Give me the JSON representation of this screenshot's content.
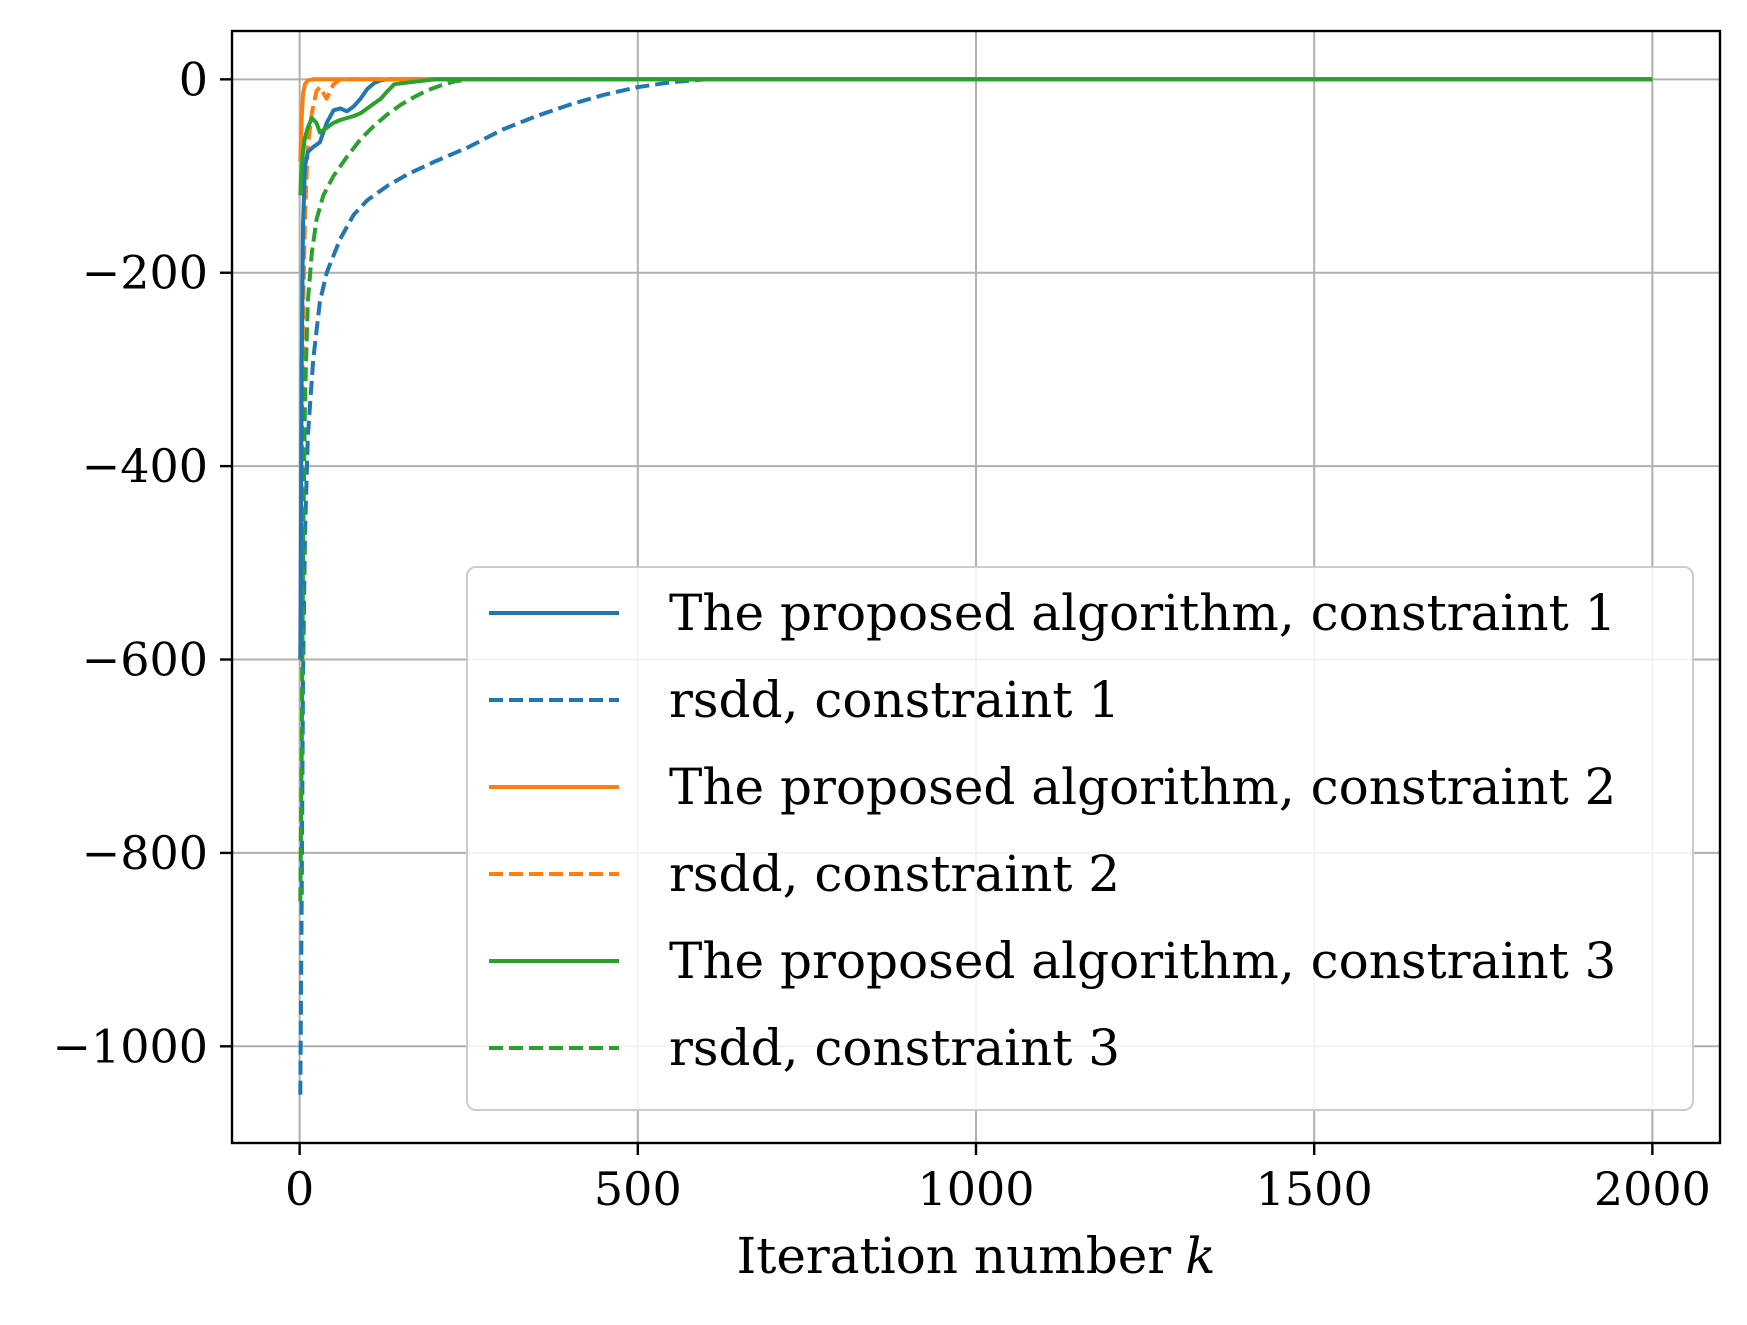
{
  "chart_data": {
    "type": "line",
    "title": "",
    "xlabel": "Iteration number",
    "xlabel_var": "k",
    "ylabel": "",
    "xlim": [
      -100,
      2100
    ],
    "ylim": [
      -1100,
      50
    ],
    "xticks": [
      0,
      500,
      1000,
      1500,
      2000
    ],
    "xtick_labels": [
      "0",
      "500",
      "1000",
      "1500",
      "2000"
    ],
    "yticks": [
      0,
      -200,
      -400,
      -600,
      -800,
      -1000
    ],
    "ytick_labels": [
      "0",
      "−200",
      "−400",
      "−600",
      "−800",
      "−1000"
    ],
    "grid": true,
    "legend_position": "lower-right",
    "series": [
      {
        "name": "The proposed algorithm, constraint 1",
        "color": "#1f77b4",
        "dash": "solid",
        "x": [
          1,
          3,
          5,
          8,
          12,
          20,
          30,
          40,
          50,
          60,
          70,
          80,
          90,
          100,
          110,
          120,
          130,
          150,
          200,
          300,
          500,
          1000,
          1500,
          2000
        ],
        "y": [
          -600,
          -300,
          -150,
          -90,
          -75,
          -70,
          -65,
          -45,
          -32,
          -30,
          -33,
          -28,
          -20,
          -10,
          -4,
          -1,
          0,
          0,
          0,
          0,
          0,
          0,
          0,
          0
        ]
      },
      {
        "name": "rsdd, constraint 1",
        "color": "#1f77b4",
        "dash": "dashed",
        "x": [
          1,
          3,
          5,
          8,
          12,
          20,
          30,
          40,
          60,
          80,
          100,
          130,
          160,
          200,
          250,
          300,
          350,
          400,
          450,
          500,
          550,
          600,
          700,
          1000,
          1500,
          2000
        ],
        "y": [
          -1050,
          -850,
          -620,
          -470,
          -370,
          -290,
          -230,
          -200,
          -165,
          -140,
          -125,
          -110,
          -98,
          -85,
          -70,
          -52,
          -38,
          -26,
          -16,
          -8,
          -3,
          0,
          0,
          0,
          0,
          0
        ]
      },
      {
        "name": "The proposed algorithm, constraint 2",
        "color": "#ff7f0e",
        "dash": "solid",
        "x": [
          1,
          3,
          5,
          8,
          12,
          20,
          30,
          40,
          60,
          100,
          500,
          1000,
          1500,
          2000
        ],
        "y": [
          -85,
          -40,
          -15,
          -5,
          -1,
          0,
          0,
          0,
          0,
          0,
          0,
          0,
          0,
          0
        ]
      },
      {
        "name": "rsdd, constraint 2",
        "color": "#ff7f0e",
        "dash": "dashed",
        "x": [
          1,
          3,
          5,
          8,
          12,
          18,
          25,
          30,
          40,
          50,
          60,
          100,
          500,
          1000,
          1500,
          2000
        ],
        "y": [
          -600,
          -420,
          -250,
          -140,
          -70,
          -35,
          -12,
          -8,
          -20,
          -5,
          0,
          0,
          0,
          0,
          0,
          0
        ]
      },
      {
        "name": "The proposed algorithm, constraint 3",
        "color": "#2ca02c",
        "dash": "solid",
        "x": [
          1,
          3,
          5,
          8,
          12,
          18,
          25,
          30,
          40,
          50,
          60,
          70,
          80,
          90,
          100,
          110,
          120,
          130,
          140,
          200,
          500,
          1000,
          1500,
          2000
        ],
        "y": [
          -120,
          -90,
          -75,
          -60,
          -50,
          -40,
          -45,
          -55,
          -50,
          -45,
          -42,
          -40,
          -38,
          -35,
          -30,
          -25,
          -20,
          -12,
          -5,
          0,
          0,
          0,
          0,
          0
        ]
      },
      {
        "name": "rsdd, constraint 3",
        "color": "#2ca02c",
        "dash": "dashed",
        "x": [
          1,
          3,
          5,
          8,
          12,
          18,
          25,
          35,
          50,
          70,
          90,
          110,
          130,
          150,
          170,
          190,
          210,
          230,
          250,
          500,
          1000,
          1500,
          2000
        ],
        "y": [
          -850,
          -700,
          -500,
          -330,
          -230,
          -180,
          -145,
          -120,
          -100,
          -80,
          -62,
          -48,
          -36,
          -26,
          -18,
          -11,
          -6,
          -2,
          0,
          0,
          0,
          0,
          0
        ]
      }
    ]
  }
}
